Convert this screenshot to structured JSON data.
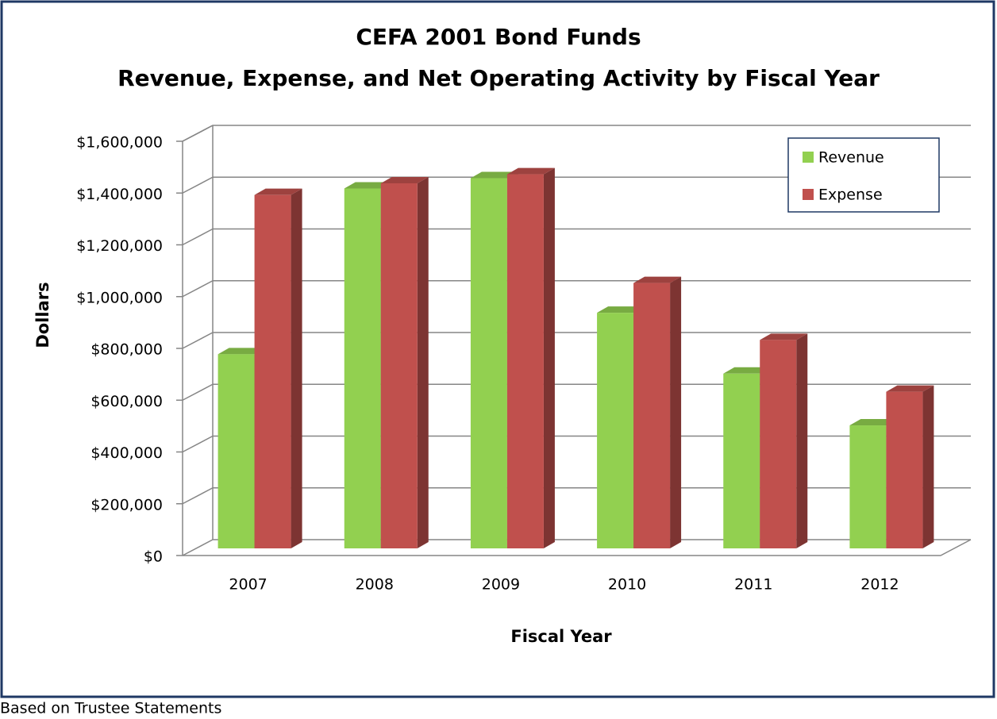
{
  "chart_data": {
    "type": "bar",
    "title": [
      "CEFA 2001 Bond Funds",
      "Revenue, Expense, and Net Operating Activity by Fiscal Year"
    ],
    "x_label": "Fiscal Year",
    "y_label": "Dollars",
    "note": "Based on Trustee Statements",
    "categories": [
      "2007",
      "2008",
      "2009",
      "2010",
      "2011",
      "2012"
    ],
    "series": [
      {
        "name": "Revenue",
        "color": "#92d050",
        "values": [
          750000,
          1390000,
          1430000,
          910000,
          675000,
          475000
        ]
      },
      {
        "name": "Expense",
        "color": "#c0504d",
        "values": [
          1365000,
          1410000,
          1445000,
          1025000,
          805000,
          605000
        ]
      }
    ],
    "ylim": [
      0,
      1600000
    ],
    "yticks": [
      {
        "value": 0,
        "label": "$0"
      },
      {
        "value": 200000,
        "label": "$200,000"
      },
      {
        "value": 400000,
        "label": "$400,000"
      },
      {
        "value": 600000,
        "label": "$600,000"
      },
      {
        "value": 800000,
        "label": "$800,000"
      },
      {
        "value": 1000000,
        "label": "$1,000,000"
      },
      {
        "value": 1200000,
        "label": "$1,200,000"
      },
      {
        "value": 1400000,
        "label": "$1,400,000"
      },
      {
        "value": 1600000,
        "label": "$1,600,000"
      }
    ],
    "grid": true,
    "legend": "upper right"
  }
}
